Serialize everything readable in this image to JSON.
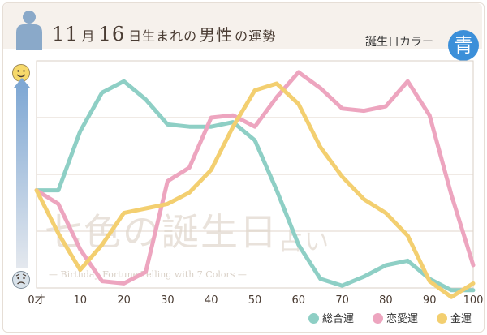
{
  "header": {
    "month_num": "11",
    "month_char": "月",
    "day_num": "16",
    "title_rest": "日生まれの",
    "title_main": "男性",
    "title_tail": "の運勢",
    "color_label": "誕生日カラー",
    "color_name": "青",
    "color_hex": "#3b8fd9"
  },
  "watermark": {
    "line1": "七色の誕生日",
    "line1_tail": "占い",
    "line2": "— Birthday Fortune Telling with 7 Colors —"
  },
  "icons": {
    "top": "happy-face-icon",
    "bottom": "sad-face-icon",
    "header": "person-silhouette-icon"
  },
  "chart_data": {
    "type": "line",
    "x": [
      0,
      5,
      10,
      15,
      20,
      25,
      30,
      35,
      40,
      45,
      50,
      55,
      60,
      65,
      70,
      75,
      80,
      85,
      90,
      95,
      100
    ],
    "x_ticks": [
      0,
      10,
      20,
      30,
      40,
      50,
      60,
      70,
      80,
      90,
      100
    ],
    "x_tick_labels": [
      "0才",
      "10",
      "20",
      "30",
      "40",
      "50",
      "60",
      "70",
      "80",
      "90",
      "100"
    ],
    "xlim": [
      0,
      100
    ],
    "ylim": [
      0,
      100
    ],
    "grid": true,
    "legend": "bottom-right",
    "series": [
      {
        "name": "総合運",
        "color": "#8ecfc5",
        "values": [
          43,
          43,
          69,
          86,
          91,
          83,
          72,
          71,
          71,
          73,
          65,
          43,
          19,
          4,
          1,
          5,
          10,
          12,
          4,
          -1,
          -1
        ]
      },
      {
        "name": "恋愛運",
        "color": "#eda5bf",
        "values": [
          43,
          37,
          17,
          3,
          2,
          7,
          47,
          53,
          75,
          76,
          71,
          84,
          95,
          88,
          79,
          78,
          80,
          91,
          76,
          41,
          10
        ]
      },
      {
        "name": "金運",
        "color": "#f3cf70",
        "values": [
          43,
          24,
          8,
          19,
          33,
          35,
          37,
          42,
          52,
          71,
          87,
          90,
          81,
          62,
          49,
          39,
          33,
          23,
          3,
          -4,
          2
        ]
      }
    ]
  }
}
